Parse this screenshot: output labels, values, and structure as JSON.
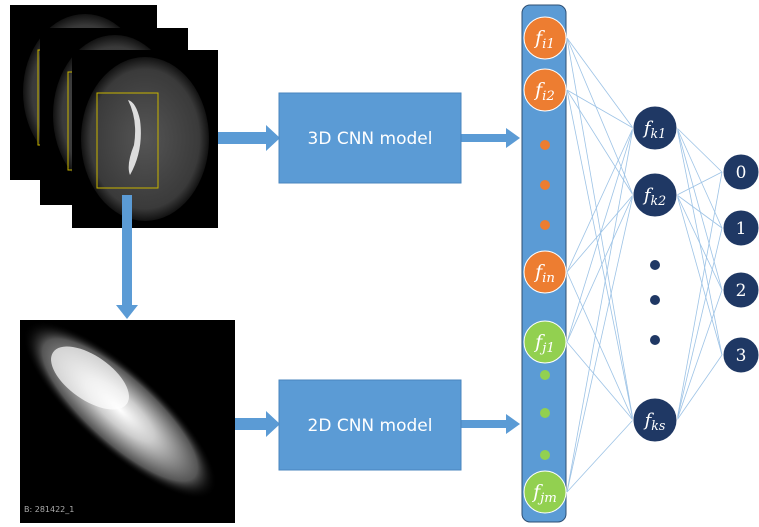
{
  "models": [
    {
      "label": "3D CNN model"
    },
    {
      "label": "2D CNN model"
    }
  ],
  "feature_nodes": [
    {
      "base": "f",
      "sub": "i1"
    },
    {
      "base": "f",
      "sub": "i2"
    },
    {
      "base": "f",
      "sub": "in"
    },
    {
      "base": "f",
      "sub": "j1"
    },
    {
      "base": "f",
      "sub": "jm"
    }
  ],
  "hidden_nodes": [
    {
      "base": "f",
      "sub": "k1"
    },
    {
      "base": "f",
      "sub": "k2"
    },
    {
      "base": "f",
      "sub": "ks"
    }
  ],
  "outputs": [
    "0",
    "1",
    "2",
    "3"
  ],
  "image_caption": "B: 281422_1"
}
